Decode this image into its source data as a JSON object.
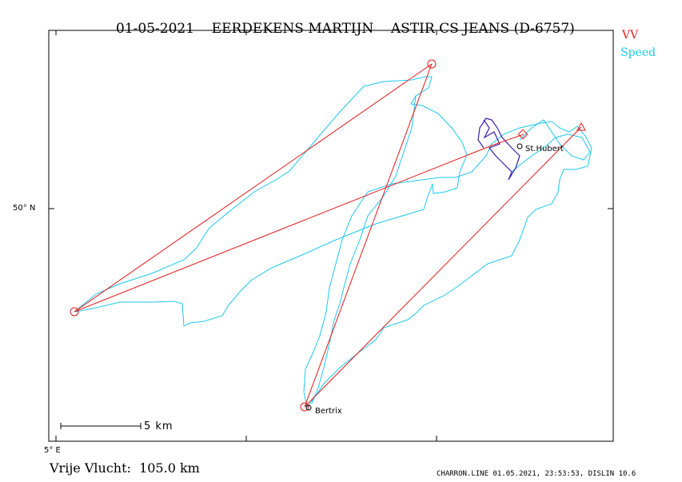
{
  "header": {
    "date": "01-05-2021",
    "pilot": "EERDEKENS MARTIJN",
    "glider": "ASTIR CS JEANS (D-6757)"
  },
  "legend": [
    {
      "label": "VV",
      "color": "#e31a1c"
    },
    {
      "label": "Speed",
      "color": "#1ec8ee"
    }
  ],
  "axes": {
    "lat_label": "50° N",
    "lon_label": "5° E"
  },
  "scale_bar": {
    "label": "5 km"
  },
  "places": [
    {
      "name": "St.Hubert"
    },
    {
      "name": "Bertrix"
    }
  ],
  "footer": {
    "distance_text": "Vrije Vlucht:  105.0 km",
    "credit": "CHARRON.LINE 01.05.2021, 23:53:53, DISLIN 10.6"
  },
  "colors": {
    "task_line": "#e31a1c",
    "track_speed": "#1ec8ee",
    "track_slow": "#3a1fb0",
    "frame": "#000000"
  }
}
